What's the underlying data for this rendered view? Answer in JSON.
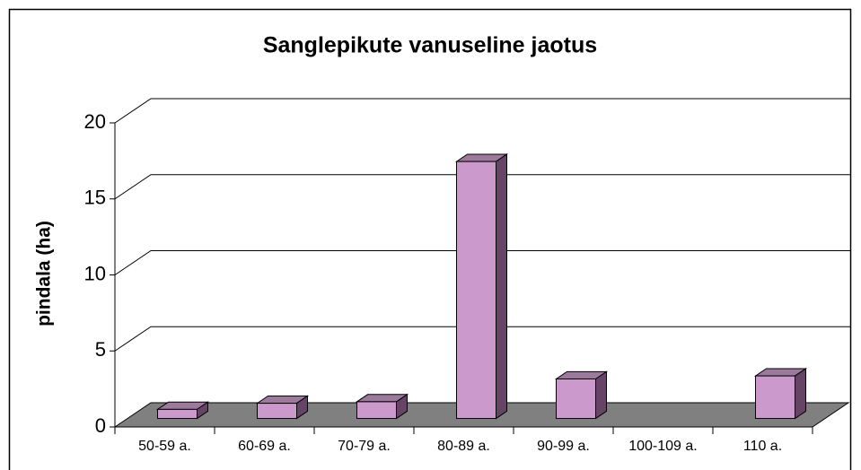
{
  "chart_data": {
    "type": "bar3d",
    "title": "Sanglepikute vanuseline jaotus",
    "y_label": "pindala (ha)",
    "categories": [
      "50-59 a.",
      "60-69 a.",
      "70-79 a.",
      "80-89 a.",
      "90-99 a.",
      "100-109 a.",
      "110 a."
    ],
    "values": [
      0.6,
      1.0,
      1.1,
      16.9,
      2.6,
      0,
      2.8
    ],
    "color": "#cc99cc",
    "ylim": [
      0,
      20
    ],
    "yticks": [
      0,
      5,
      10,
      15,
      20
    ],
    "grid": true
  }
}
